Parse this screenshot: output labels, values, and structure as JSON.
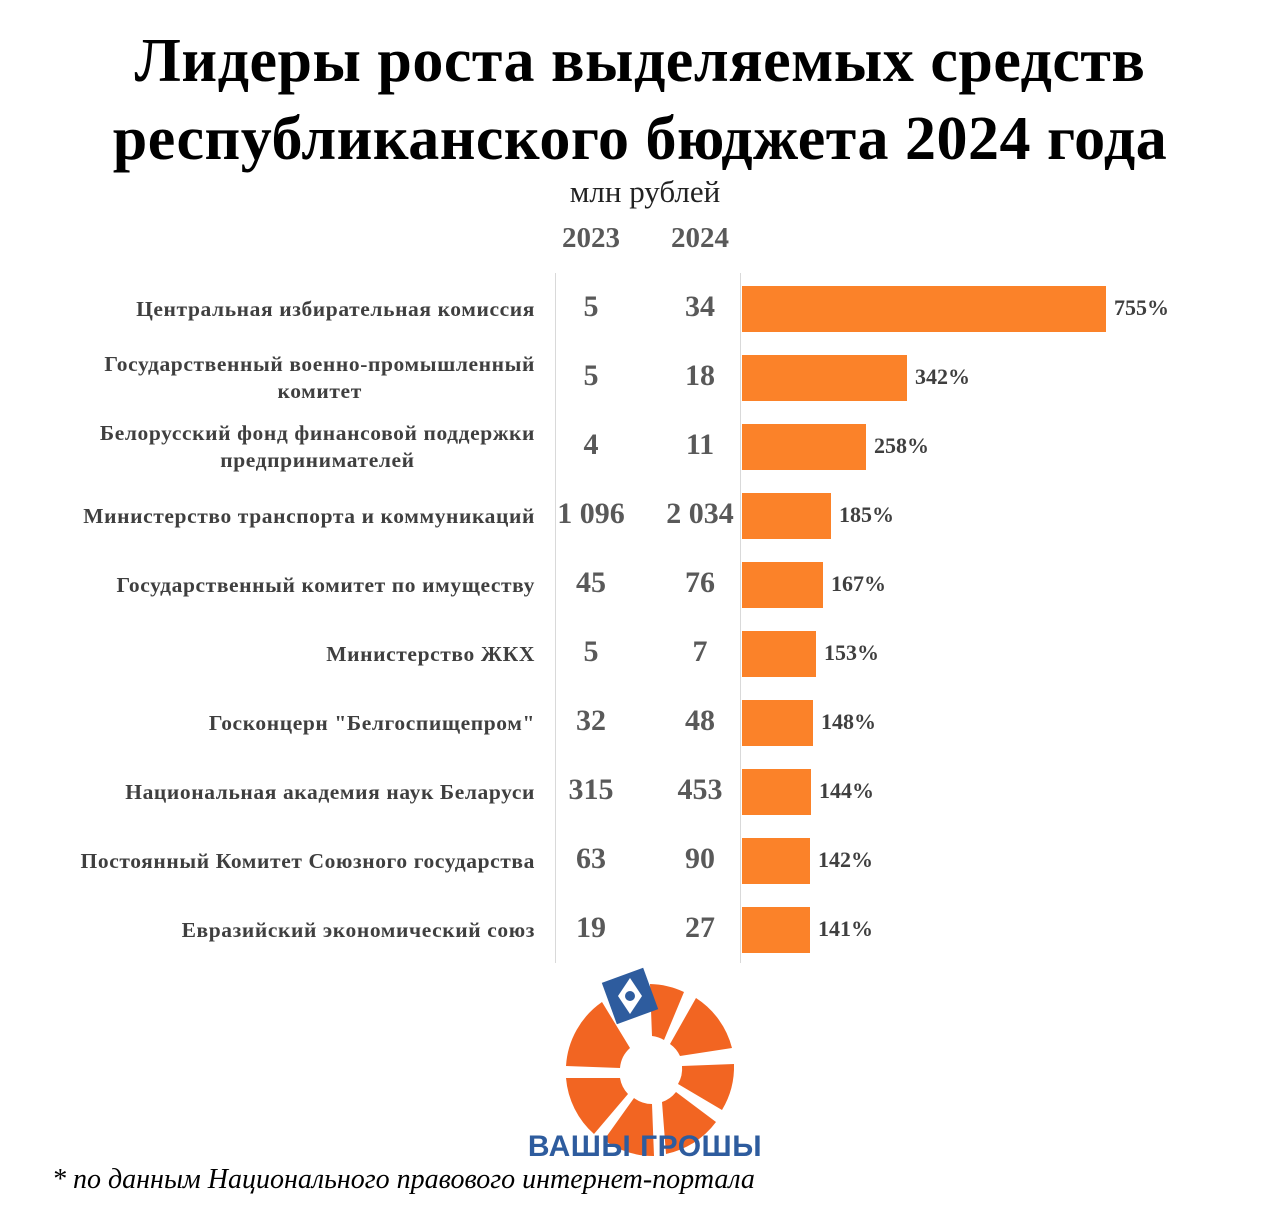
{
  "title_line1": "Лидеры роста выделяемых средств",
  "title_line2": "республиканского бюджета 2024 года",
  "unit": "млн рублей",
  "col_2023": "2023",
  "col_2024": "2024",
  "bar_color": "#fb8229",
  "chart_data": {
    "type": "bar",
    "orientation": "horizontal",
    "title": "Лидеры роста выделяемых средств республиканского бюджета 2024 года",
    "unit": "млн рублей",
    "categories": [
      "Центральная избирательная комиссия",
      "Государственный военно-промышленный комитет",
      "Белорусский фонд финансовой поддержки предпринимателей",
      "Министерство транспорта и коммуникаций",
      "Государственный комитет по имуществу",
      "Министерство ЖКХ",
      "Госконцерн \"Белгоспищепром\"",
      "Национальная академия наук Беларуси",
      "Постоянный Комитет Союзного государства",
      "Евразийский экономический союз"
    ],
    "rows": [
      {
        "label_lines": [
          "Центральная избирательная комиссия"
        ],
        "v2023": "5",
        "v2024": "34",
        "growth": 755,
        "growth_label": "755%"
      },
      {
        "label_lines": [
          "Государственный военно-промышленный",
          "комитет"
        ],
        "v2023": "5",
        "v2024": "18",
        "growth": 342,
        "growth_label": "342%"
      },
      {
        "label_lines": [
          "Белорусский фонд финансовой поддержки",
          "предпринимателей"
        ],
        "v2023": "4",
        "v2024": "11",
        "growth": 258,
        "growth_label": "258%"
      },
      {
        "label_lines": [
          "Министерство транспорта и коммуникаций"
        ],
        "v2023": "1 096",
        "v2024": "2 034",
        "growth": 185,
        "growth_label": "185%"
      },
      {
        "label_lines": [
          "Государственный комитет по имуществу"
        ],
        "v2023": "45",
        "v2024": "76",
        "growth": 167,
        "growth_label": "167%"
      },
      {
        "label_lines": [
          "Министерство ЖКХ"
        ],
        "v2023": "5",
        "v2024": "7",
        "growth": 153,
        "growth_label": "153%"
      },
      {
        "label_lines": [
          "Госконцерн \"Белгоспищепром\""
        ],
        "v2023": "32",
        "v2024": "48",
        "growth": 148,
        "growth_label": "148%"
      },
      {
        "label_lines": [
          "Национальная академия наук Беларуси"
        ],
        "v2023": "315",
        "v2024": "453",
        "growth": 144,
        "growth_label": "144%"
      },
      {
        "label_lines": [
          "Постоянный Комитет Союзного государства"
        ],
        "v2023": "63",
        "v2024": "90",
        "growth": 142,
        "growth_label": "142%"
      },
      {
        "label_lines": [
          "Евразийский экономический союз"
        ],
        "v2023": "19",
        "v2024": "27",
        "growth": 141,
        "growth_label": "141%"
      }
    ],
    "xlim": [
      0,
      755
    ]
  },
  "logo": {
    "name": "ВАШЫ ГРОШЫ",
    "color": "#f26522",
    "accent": "#2e5c9e"
  },
  "footnote": "* по данным Национального правового интернет-портала"
}
